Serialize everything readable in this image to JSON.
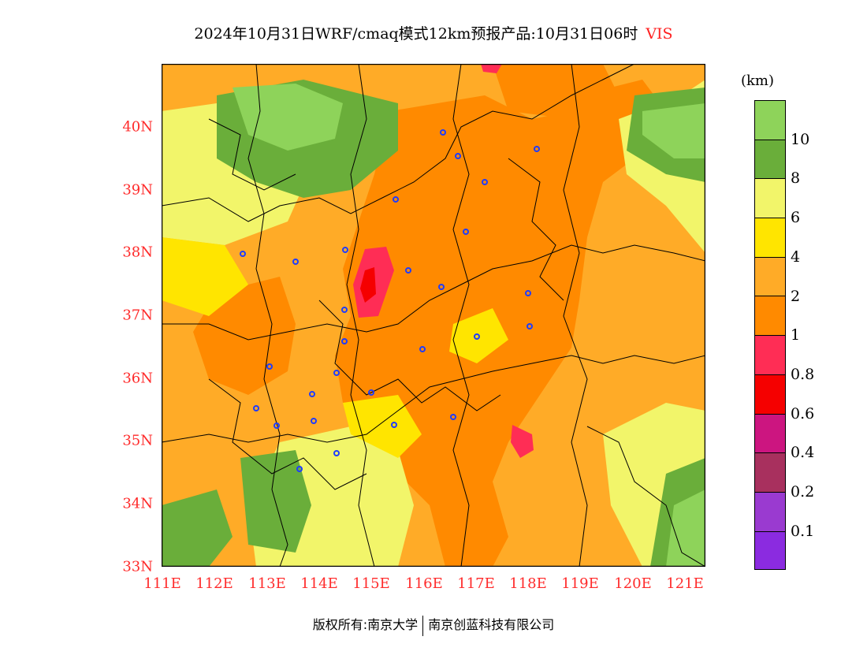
{
  "title": {
    "main": "2024年10月31日WRF/cmaq模式12km预报产品:10月31日06时",
    "variable": "VIS"
  },
  "axes": {
    "y_ticks": [
      "33N",
      "34N",
      "35N",
      "36N",
      "37N",
      "38N",
      "39N",
      "40N"
    ],
    "x_ticks": [
      "111E",
      "112E",
      "113E",
      "114E",
      "115E",
      "116E",
      "117E",
      "118E",
      "119E",
      "120E",
      "121E"
    ]
  },
  "colorbar": {
    "unit": "(km)",
    "labels": [
      "10",
      "8",
      "6",
      "4",
      "2",
      "1",
      "0.8",
      "0.6",
      "0.4",
      "0.2",
      "0.1"
    ],
    "colors": [
      "#8ed35a",
      "#6aae3a",
      "#f2f56a",
      "#ffe500",
      "#ffab27",
      "#ff8a00",
      "#ff2d55",
      "#f50000",
      "#cc1580",
      "#a8305e",
      "#9a3ad0",
      "#8b2be0"
    ]
  },
  "map": {
    "background": "#ffab27",
    "city_marker_color": "#1f3cff",
    "boundary_color": "#000000"
  },
  "footer": {
    "copyright": "版权所有:南京大学",
    "company": "南京创蓝科技有限公司"
  }
}
